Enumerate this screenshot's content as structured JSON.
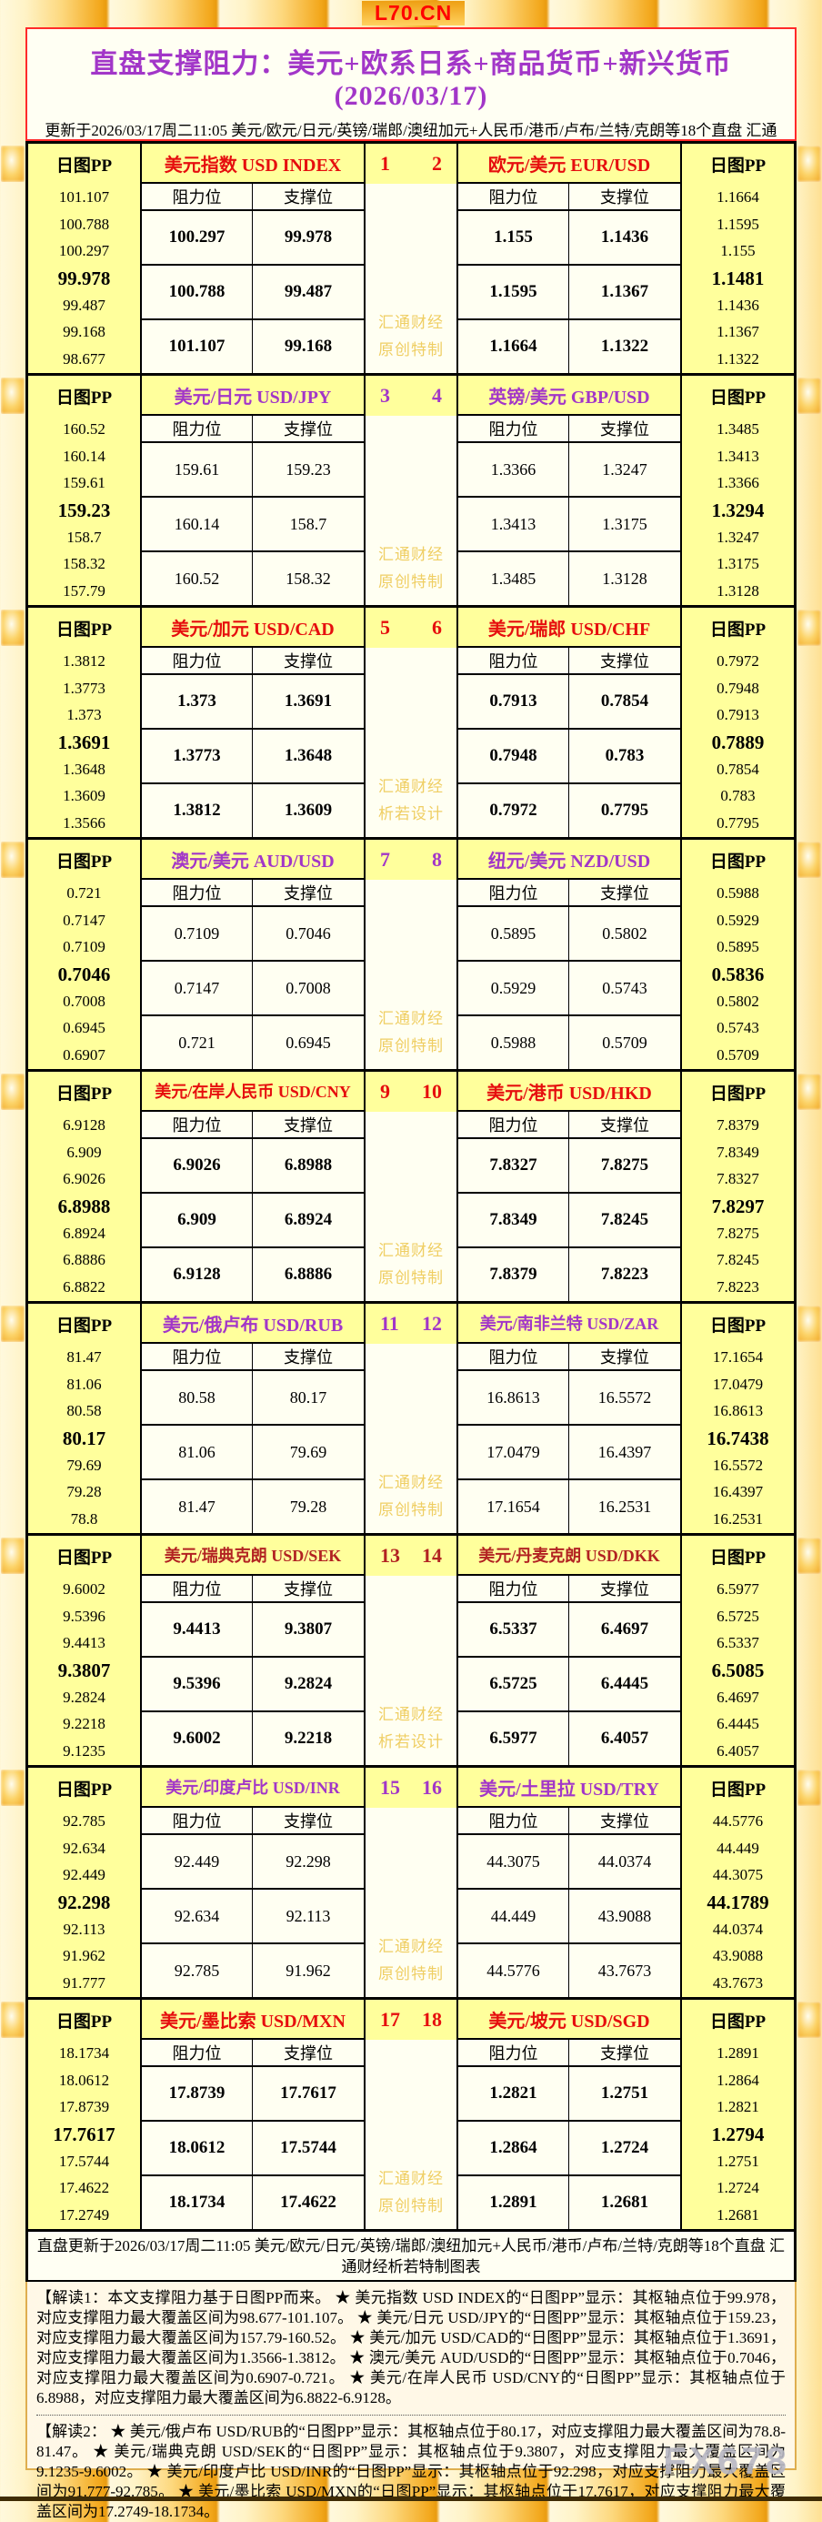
{
  "site_badge": "L70.CN",
  "brand_watermark": "FX678",
  "header": {
    "title": "直盘支撑阻力：美元+欧系日系+商品货币+新兴货币(2026/03/17)",
    "subtitle": "更新于2026/03/17周二11:05 美元/欧元/日元/英镑/瑞郎/澳纽加元+人民币/港币/卢布/兰特/克朗等18个直盘 汇通财经析若特制图表"
  },
  "labels": {
    "pp": "日图PP",
    "resistance": "阻力位",
    "support": "支撑位"
  },
  "colors": {
    "red": "#E60E0E",
    "purple": "#A236C8",
    "dark_red": "#B22222"
  },
  "blocks": [
    {
      "nums": [
        "1",
        "2"
      ],
      "accent": "red",
      "values_bold": true,
      "watermark": [
        "汇通财经",
        "原创特制"
      ],
      "left": {
        "name": "美元指数 USD INDEX",
        "pp": [
          "101.107",
          "100.788",
          "100.297",
          "99.978",
          "99.487",
          "99.168",
          "98.677"
        ],
        "rows": [
          [
            "100.297",
            "99.978"
          ],
          [
            "100.788",
            "99.487"
          ],
          [
            "101.107",
            "99.168"
          ]
        ]
      },
      "right": {
        "name": "欧元/美元 EUR/USD",
        "pp": [
          "1.1664",
          "1.1595",
          "1.155",
          "1.1481",
          "1.1436",
          "1.1367",
          "1.1322"
        ],
        "rows": [
          [
            "1.155",
            "1.1436"
          ],
          [
            "1.1595",
            "1.1367"
          ],
          [
            "1.1664",
            "1.1322"
          ]
        ]
      }
    },
    {
      "nums": [
        "3",
        "4"
      ],
      "accent": "purple",
      "values_bold": false,
      "watermark": [
        "汇通财经",
        "原创特制"
      ],
      "left": {
        "name": "美元/日元 USD/JPY",
        "pp": [
          "160.52",
          "160.14",
          "159.61",
          "159.23",
          "158.7",
          "158.32",
          "157.79"
        ],
        "rows": [
          [
            "159.61",
            "159.23"
          ],
          [
            "160.14",
            "158.7"
          ],
          [
            "160.52",
            "158.32"
          ]
        ]
      },
      "right": {
        "name": "英镑/美元 GBP/USD",
        "pp": [
          "1.3485",
          "1.3413",
          "1.3366",
          "1.3294",
          "1.3247",
          "1.3175",
          "1.3128"
        ],
        "rows": [
          [
            "1.3366",
            "1.3247"
          ],
          [
            "1.3413",
            "1.3175"
          ],
          [
            "1.3485",
            "1.3128"
          ]
        ]
      }
    },
    {
      "nums": [
        "5",
        "6"
      ],
      "accent": "red",
      "values_bold": true,
      "watermark": [
        "汇通财经",
        "析若设计"
      ],
      "left": {
        "name": "美元/加元 USD/CAD",
        "pp": [
          "1.3812",
          "1.3773",
          "1.373",
          "1.3691",
          "1.3648",
          "1.3609",
          "1.3566"
        ],
        "rows": [
          [
            "1.373",
            "1.3691"
          ],
          [
            "1.3773",
            "1.3648"
          ],
          [
            "1.3812",
            "1.3609"
          ]
        ]
      },
      "right": {
        "name": "美元/瑞郎 USD/CHF",
        "pp": [
          "0.7972",
          "0.7948",
          "0.7913",
          "0.7889",
          "0.7854",
          "0.783",
          "0.7795"
        ],
        "rows": [
          [
            "0.7913",
            "0.7854"
          ],
          [
            "0.7948",
            "0.783"
          ],
          [
            "0.7972",
            "0.7795"
          ]
        ]
      }
    },
    {
      "nums": [
        "7",
        "8"
      ],
      "accent": "purple",
      "values_bold": false,
      "watermark": [
        "汇通财经",
        "原创特制"
      ],
      "left": {
        "name": "澳元/美元 AUD/USD",
        "pp": [
          "0.721",
          "0.7147",
          "0.7109",
          "0.7046",
          "0.7008",
          "0.6945",
          "0.6907"
        ],
        "rows": [
          [
            "0.7109",
            "0.7046"
          ],
          [
            "0.7147",
            "0.7008"
          ],
          [
            "0.721",
            "0.6945"
          ]
        ]
      },
      "right": {
        "name": "纽元/美元 NZD/USD",
        "pp": [
          "0.5988",
          "0.5929",
          "0.5895",
          "0.5836",
          "0.5802",
          "0.5743",
          "0.5709"
        ],
        "rows": [
          [
            "0.5895",
            "0.5802"
          ],
          [
            "0.5929",
            "0.5743"
          ],
          [
            "0.5988",
            "0.5709"
          ]
        ]
      }
    },
    {
      "nums": [
        "9",
        "10"
      ],
      "accent": "red",
      "values_bold": true,
      "watermark": [
        "汇通财经",
        "原创特制"
      ],
      "left": {
        "name": "美元/在岸人民币 USD/CNY",
        "pp": [
          "6.9128",
          "6.909",
          "6.9026",
          "6.8988",
          "6.8924",
          "6.8886",
          "6.8822"
        ],
        "rows": [
          [
            "6.9026",
            "6.8988"
          ],
          [
            "6.909",
            "6.8924"
          ],
          [
            "6.9128",
            "6.8886"
          ]
        ]
      },
      "right": {
        "name": "美元/港币 USD/HKD",
        "pp": [
          "7.8379",
          "7.8349",
          "7.8327",
          "7.8297",
          "7.8275",
          "7.8245",
          "7.8223"
        ],
        "rows": [
          [
            "7.8327",
            "7.8275"
          ],
          [
            "7.8349",
            "7.8245"
          ],
          [
            "7.8379",
            "7.8223"
          ]
        ]
      }
    },
    {
      "nums": [
        "11",
        "12"
      ],
      "accent": "purple",
      "values_bold": false,
      "watermark": [
        "汇通财经",
        "原创特制"
      ],
      "left": {
        "name": "美元/俄卢布 USD/RUB",
        "pp": [
          "81.47",
          "81.06",
          "80.58",
          "80.17",
          "79.69",
          "79.28",
          "78.8"
        ],
        "rows": [
          [
            "80.58",
            "80.17"
          ],
          [
            "81.06",
            "79.69"
          ],
          [
            "81.47",
            "79.28"
          ]
        ]
      },
      "right": {
        "name": "美元/南非兰特 USD/ZAR",
        "pp": [
          "17.1654",
          "17.0479",
          "16.8613",
          "16.7438",
          "16.5572",
          "16.4397",
          "16.2531"
        ],
        "rows": [
          [
            "16.8613",
            "16.5572"
          ],
          [
            "17.0479",
            "16.4397"
          ],
          [
            "17.1654",
            "16.2531"
          ]
        ]
      }
    },
    {
      "nums": [
        "13",
        "14"
      ],
      "accent": "dark_red",
      "values_bold": true,
      "watermark": [
        "汇通财经",
        "析若设计"
      ],
      "left": {
        "name": "美元/瑞典克朗 USD/SEK",
        "pp": [
          "9.6002",
          "9.5396",
          "9.4413",
          "9.3807",
          "9.2824",
          "9.2218",
          "9.1235"
        ],
        "rows": [
          [
            "9.4413",
            "9.3807"
          ],
          [
            "9.5396",
            "9.2824"
          ],
          [
            "9.6002",
            "9.2218"
          ]
        ]
      },
      "right": {
        "name": "美元/丹麦克朗 USD/DKK",
        "pp": [
          "6.5977",
          "6.5725",
          "6.5337",
          "6.5085",
          "6.4697",
          "6.4445",
          "6.4057"
        ],
        "rows": [
          [
            "6.5337",
            "6.4697"
          ],
          [
            "6.5725",
            "6.4445"
          ],
          [
            "6.5977",
            "6.4057"
          ]
        ]
      }
    },
    {
      "nums": [
        "15",
        "16"
      ],
      "accent": "purple",
      "values_bold": false,
      "watermark": [
        "汇通财经",
        "原创特制"
      ],
      "left": {
        "name": "美元/印度卢比 USD/INR",
        "pp": [
          "92.785",
          "92.634",
          "92.449",
          "92.298",
          "92.113",
          "91.962",
          "91.777"
        ],
        "rows": [
          [
            "92.449",
            "92.298"
          ],
          [
            "92.634",
            "92.113"
          ],
          [
            "92.785",
            "91.962"
          ]
        ]
      },
      "right": {
        "name": "美元/土里拉 USD/TRY",
        "pp": [
          "44.5776",
          "44.449",
          "44.3075",
          "44.1789",
          "44.0374",
          "43.9088",
          "43.7673"
        ],
        "rows": [
          [
            "44.3075",
            "44.0374"
          ],
          [
            "44.449",
            "43.9088"
          ],
          [
            "44.5776",
            "43.7673"
          ]
        ]
      }
    },
    {
      "nums": [
        "17",
        "18"
      ],
      "accent": "red",
      "values_bold": true,
      "watermark": [
        "汇通财经",
        "原创特制"
      ],
      "left": {
        "name": "美元/墨比索 USD/MXN",
        "pp": [
          "18.1734",
          "18.0612",
          "17.8739",
          "17.7617",
          "17.5744",
          "17.4622",
          "17.2749"
        ],
        "rows": [
          [
            "17.8739",
            "17.7617"
          ],
          [
            "18.0612",
            "17.5744"
          ],
          [
            "18.1734",
            "17.4622"
          ]
        ]
      },
      "right": {
        "name": "美元/坡元 USD/SGD",
        "pp": [
          "1.2891",
          "1.2864",
          "1.2821",
          "1.2794",
          "1.2751",
          "1.2724",
          "1.2681"
        ],
        "rows": [
          [
            "1.2821",
            "1.2751"
          ],
          [
            "1.2864",
            "1.2724"
          ],
          [
            "1.2891",
            "1.2681"
          ]
        ]
      }
    }
  ],
  "footer_bar": "直盘更新于2026/03/17周二11:05 美元/欧元/日元/英镑/瑞郎/澳纽加元+人民币/港币/卢布/兰特/克朗等18个直盘 汇通财经析若特制图表",
  "notes": [
    "【解读1：本文支撑阻力基于日图PP而来。 ★ 美元指数 USD INDEX的“日图PP”显示：其枢轴点位于99.978，对应支撑阻力最大覆盖区间为98.677-101.107。 ★ 美元/日元 USD/JPY的“日图PP”显示：其枢轴点位于159.23，对应支撑阻力最大覆盖区间为157.79-160.52。 ★ 美元/加元 USD/CAD的“日图PP”显示：其枢轴点位于1.3691，对应支撑阻力最大覆盖区间为1.3566-1.3812。 ★ 澳元/美元 AUD/USD的“日图PP”显示：其枢轴点位于0.7046，对应支撑阻力最大覆盖区间为0.6907-0.721。 ★ 美元/在岸人民币 USD/CNY的“日图PP”显示：其枢轴点位于6.8988，对应支撑阻力最大覆盖区间为6.8822-6.9128。",
    "【解读2： ★ 美元/俄卢布 USD/RUB的“日图PP”显示：其枢轴点位于80.17，对应支撑阻力最大覆盖区间为78.8-81.47。 ★ 美元/瑞典克朗 USD/SEK的“日图PP”显示：其枢轴点位于9.3807，对应支撑阻力最大覆盖区间为9.1235-9.6002。 ★ 美元/印度卢比 USD/INR的“日图PP”显示：其枢轴点位于92.298，对应支撑阻力最大覆盖区间为91.777-92.785。 ★ 美元/墨比索 USD/MXN的“日图PP”显示：其枢轴点位于17.7617，对应支撑阻力最大覆盖区间为17.2749-18.1734。"
  ]
}
